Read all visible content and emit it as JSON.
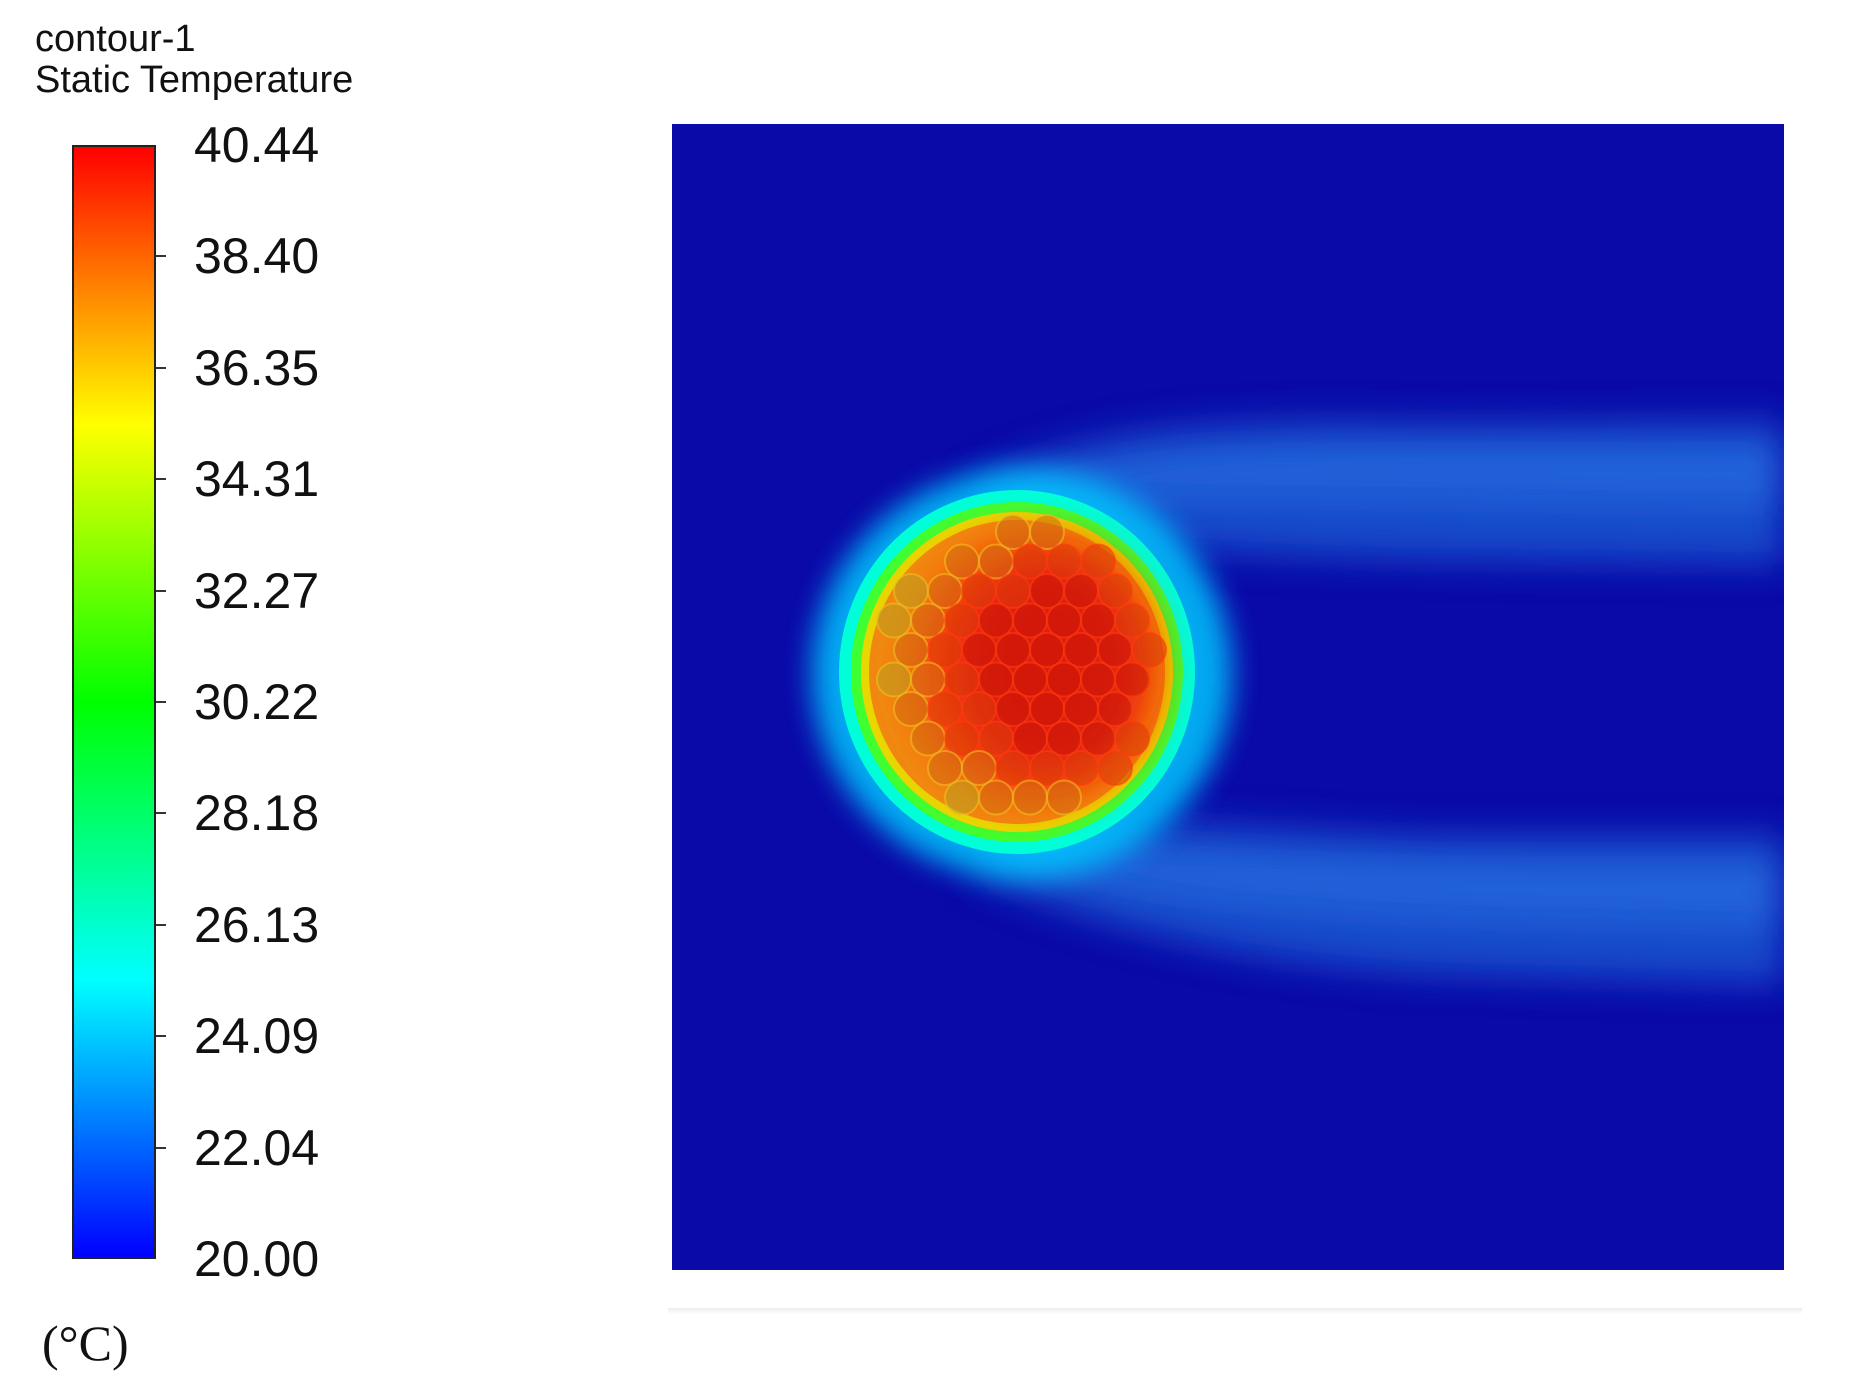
{
  "chart_data": {
    "type": "heatmap",
    "title": "contour-1",
    "subtitle": "Static Temperature",
    "unit": "(°C)",
    "colorbar": {
      "min": 20.0,
      "max": 40.44,
      "tick_labels": [
        "40.44",
        "38.40",
        "36.35",
        "34.31",
        "32.27",
        "30.22",
        "28.18",
        "26.13",
        "24.09",
        "22.04",
        "20.00"
      ],
      "colormap": [
        "#0000ff",
        "#0080ff",
        "#00ffff",
        "#00ff80",
        "#00ff00",
        "#80ff00",
        "#ffff00",
        "#ff8000",
        "#ff0000"
      ]
    },
    "background_value": 20.0,
    "peak_value": 40.44,
    "colors": {
      "background": "#0a0aa8",
      "wake": "#1e5ad6",
      "core": "#d81e0c",
      "rim": "#00ffff"
    }
  }
}
